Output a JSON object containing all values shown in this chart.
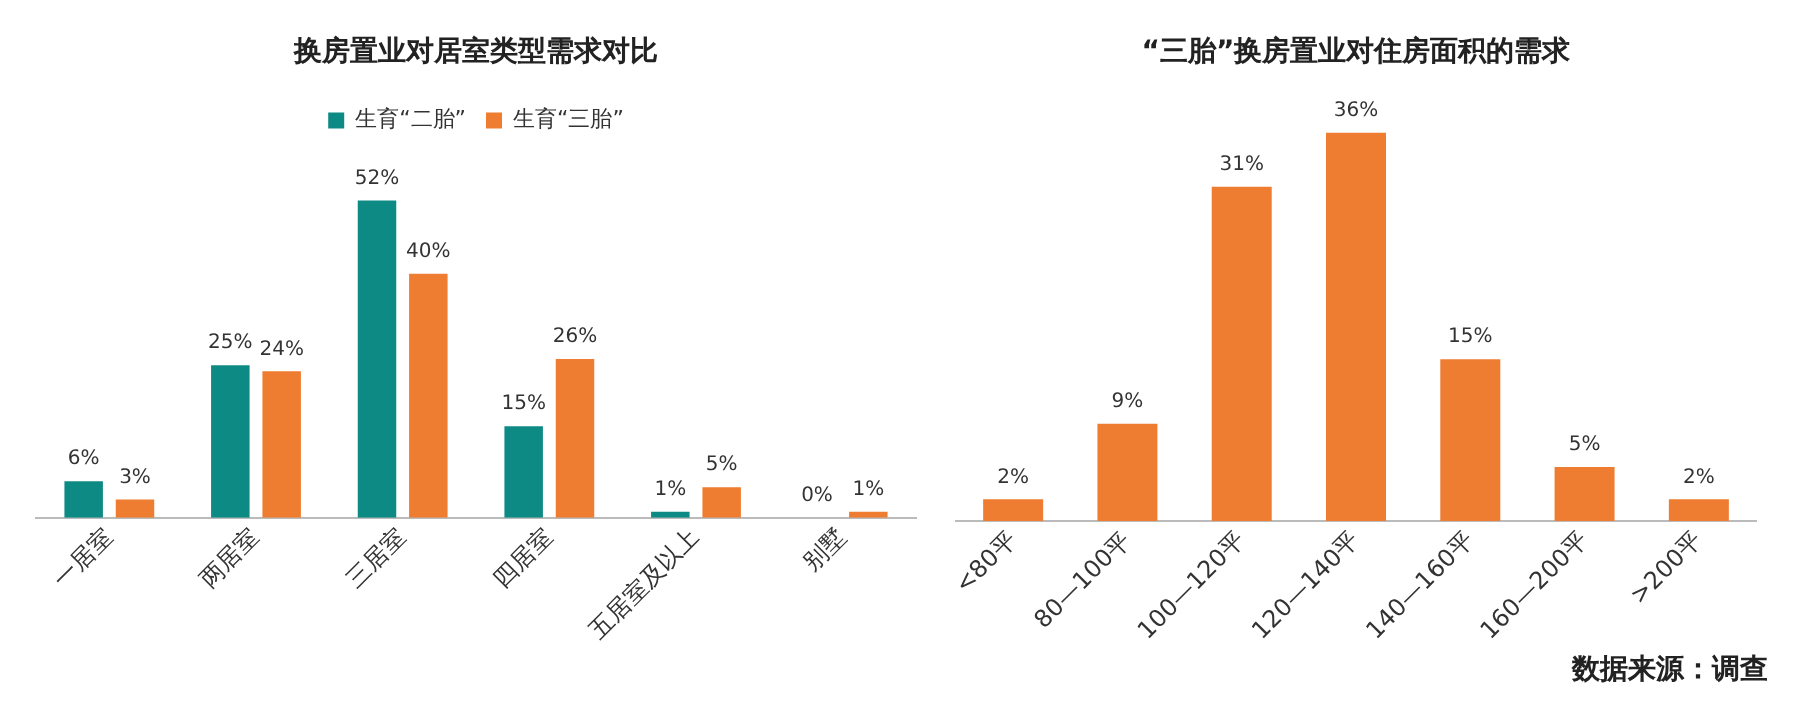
{
  "chart_data": [
    {
      "type": "bar",
      "title": "换房置业对居室类型需求对比",
      "categories": [
        "一居室",
        "两居室",
        "三居室",
        "四居室",
        "五居室及以上",
        "别墅"
      ],
      "series": [
        {
          "name": "生育“二胎”",
          "color": "#0e8a84",
          "values": [
            6,
            25,
            52,
            15,
            1,
            0
          ],
          "value_labels": [
            "6%",
            "25%",
            "52%",
            "15%",
            "1%",
            "0%"
          ]
        },
        {
          "name": "生育“三胎”",
          "color": "#ef7d31",
          "values": [
            3,
            24,
            40,
            26,
            5,
            1
          ],
          "value_labels": [
            "3%",
            "24%",
            "40%",
            "26%",
            "5%",
            "1%"
          ]
        }
      ],
      "legend": "top",
      "grid": false,
      "tick_labels": "x"
    },
    {
      "type": "bar",
      "title": "“三胎”换房置业对住房面积的需求",
      "categories": [
        "<80平",
        "80—100平",
        "100—120平",
        "120—140平",
        "140—160平",
        "160—200平",
        ">200平"
      ],
      "series": [
        {
          "color": "#ef7d31",
          "values": [
            2,
            9,
            31,
            36,
            15,
            5,
            2
          ],
          "value_labels": [
            "2%",
            "9%",
            "31%",
            "36%",
            "15%",
            "5%",
            "2%"
          ]
        }
      ],
      "grid": false,
      "tick_labels": "x",
      "annotations": [
        "数据来源：调查"
      ]
    }
  ]
}
